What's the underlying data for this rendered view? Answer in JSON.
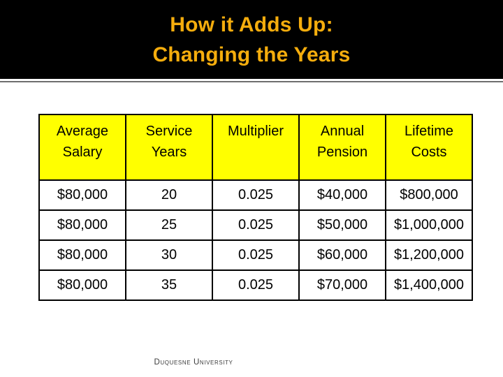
{
  "slide": {
    "title_line1": "How it Adds Up:",
    "title_line2": "Changing the Years",
    "footer": "Duquesne University"
  },
  "colors": {
    "banner_bg": "#000000",
    "title_text": "#F5AD0D",
    "header_cell_bg": "#FFFF00",
    "table_border": "#000000",
    "divider": "#6E6E6E",
    "body_text": "#000000"
  },
  "table": {
    "columns": [
      {
        "label": "Average\nSalary"
      },
      {
        "label": "Service\nYears"
      },
      {
        "label": "Multiplier"
      },
      {
        "label": "Annual\nPension"
      },
      {
        "label": "Lifetime\nCosts"
      }
    ],
    "rows": [
      [
        "$80,000",
        "20",
        "0.025",
        "$40,000",
        "$800,000"
      ],
      [
        "$80,000",
        "25",
        "0.025",
        "$50,000",
        "$1,000,000"
      ],
      [
        "$80,000",
        "30",
        "0.025",
        "$60,000",
        "$1,200,000"
      ],
      [
        "$80,000",
        "35",
        "0.025",
        "$70,000",
        "$1,400,000"
      ]
    ]
  }
}
